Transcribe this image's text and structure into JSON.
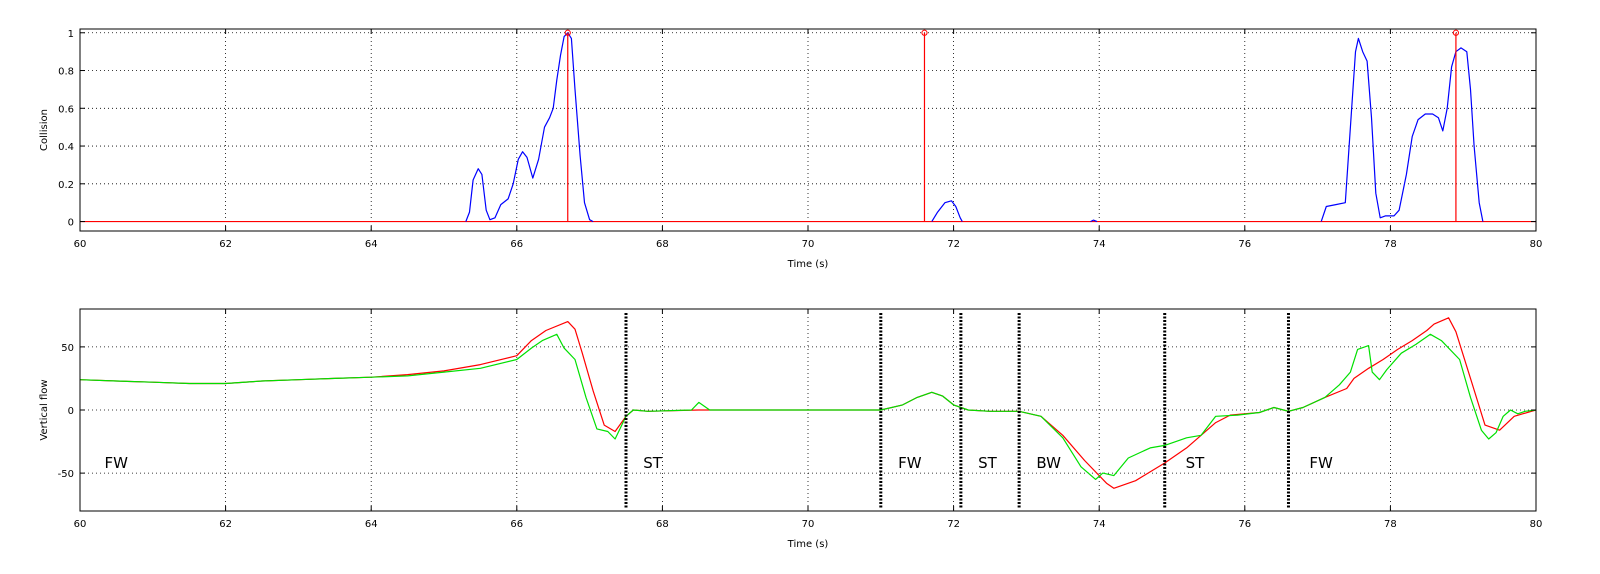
{
  "chart_data": [
    {
      "type": "line",
      "xlabel": "Time (s)",
      "ylabel": "Collision",
      "xlim": [
        60,
        80
      ],
      "ylim": [
        -0.05,
        1.02
      ],
      "xticks": [
        60,
        62,
        64,
        66,
        68,
        70,
        72,
        74,
        76,
        78,
        80
      ],
      "xtick_labels": [
        "60",
        "62",
        "64",
        "66",
        "68",
        "70",
        "72",
        "74",
        "76",
        "78",
        "80"
      ],
      "yticks": [
        0,
        0.2,
        0.4,
        0.6,
        0.8,
        1
      ],
      "ytick_labels": [
        "0",
        "0.2",
        "0.4",
        "0.6",
        "0.8",
        "1"
      ],
      "grid": true,
      "series": [
        {
          "color": "#0000ff",
          "points": [
            [
              65.3,
              0
            ],
            [
              65.35,
              0.05
            ],
            [
              65.4,
              0.22
            ],
            [
              65.47,
              0.28
            ],
            [
              65.52,
              0.25
            ],
            [
              65.58,
              0.06
            ],
            [
              65.63,
              0.01
            ],
            [
              65.7,
              0.02
            ],
            [
              65.78,
              0.09
            ],
            [
              65.88,
              0.12
            ],
            [
              65.95,
              0.2
            ],
            [
              66.02,
              0.33
            ],
            [
              66.08,
              0.37
            ],
            [
              66.14,
              0.34
            ],
            [
              66.22,
              0.23
            ],
            [
              66.3,
              0.33
            ],
            [
              66.38,
              0.5
            ],
            [
              66.45,
              0.55
            ],
            [
              66.5,
              0.6
            ],
            [
              66.55,
              0.75
            ],
            [
              66.6,
              0.88
            ],
            [
              66.65,
              0.98
            ],
            [
              66.7,
              1.0
            ],
            [
              66.75,
              0.97
            ],
            [
              66.8,
              0.7
            ],
            [
              66.87,
              0.35
            ],
            [
              66.93,
              0.1
            ],
            [
              67.0,
              0.01
            ],
            [
              67.05,
              0
            ]
          ]
        },
        {
          "color": "#0000ff",
          "points": [
            [
              71.7,
              0
            ],
            [
              71.78,
              0.05
            ],
            [
              71.88,
              0.1
            ],
            [
              71.97,
              0.11
            ],
            [
              72.03,
              0.08
            ],
            [
              72.09,
              0.02
            ],
            [
              72.12,
              0
            ]
          ]
        },
        {
          "color": "#0000ff",
          "points": [
            [
              73.88,
              0
            ],
            [
              73.92,
              0.008
            ],
            [
              73.97,
              0
            ]
          ]
        },
        {
          "color": "#0000ff",
          "points": [
            [
              77.05,
              0
            ],
            [
              77.12,
              0.08
            ],
            [
              77.25,
              0.09
            ],
            [
              77.38,
              0.1
            ],
            [
              77.45,
              0.5
            ],
            [
              77.52,
              0.9
            ],
            [
              77.56,
              0.97
            ],
            [
              77.62,
              0.9
            ],
            [
              77.68,
              0.85
            ],
            [
              77.74,
              0.55
            ],
            [
              77.8,
              0.15
            ],
            [
              77.86,
              0.02
            ],
            [
              77.93,
              0.03
            ],
            [
              78.05,
              0.03
            ],
            [
              78.12,
              0.06
            ],
            [
              78.22,
              0.25
            ],
            [
              78.3,
              0.45
            ],
            [
              78.38,
              0.54
            ],
            [
              78.48,
              0.57
            ],
            [
              78.58,
              0.57
            ],
            [
              78.66,
              0.55
            ],
            [
              78.72,
              0.48
            ],
            [
              78.78,
              0.6
            ],
            [
              78.84,
              0.82
            ],
            [
              78.9,
              0.9
            ],
            [
              78.97,
              0.92
            ],
            [
              79.05,
              0.9
            ],
            [
              79.1,
              0.7
            ],
            [
              79.15,
              0.4
            ],
            [
              79.22,
              0.1
            ],
            [
              79.27,
              0
            ]
          ]
        }
      ],
      "baseline": {
        "y": 0,
        "color": "#ff0000"
      },
      "stems": {
        "color": "#ff0000",
        "x": [
          66.7,
          71.6,
          78.9
        ],
        "y": [
          1,
          1,
          1
        ]
      }
    },
    {
      "type": "line",
      "xlabel": "Time (s)",
      "ylabel": "Vertical flow",
      "xlim": [
        60,
        80
      ],
      "ylim": [
        -80,
        80
      ],
      "xticks": [
        60,
        62,
        64,
        66,
        68,
        70,
        72,
        74,
        76,
        78,
        80
      ],
      "xtick_labels": [
        "60",
        "62",
        "64",
        "66",
        "68",
        "70",
        "72",
        "74",
        "76",
        "78",
        "80"
      ],
      "yticks": [
        -50,
        0,
        50
      ],
      "ytick_labels": [
        "-50",
        "0",
        "50"
      ],
      "grid": true,
      "series": [
        {
          "color": "#ff0000",
          "points": [
            [
              60,
              24
            ],
            [
              60.5,
              23
            ],
            [
              61,
              22
            ],
            [
              61.5,
              21
            ],
            [
              62,
              21
            ],
            [
              62.5,
              23
            ],
            [
              63,
              24
            ],
            [
              63.5,
              25
            ],
            [
              64,
              26
            ],
            [
              64.5,
              28
            ],
            [
              65,
              31
            ],
            [
              65.5,
              36
            ],
            [
              66,
              43
            ],
            [
              66.2,
              55
            ],
            [
              66.4,
              63
            ],
            [
              66.7,
              70
            ],
            [
              66.8,
              64
            ],
            [
              66.9,
              45
            ],
            [
              67.05,
              15
            ],
            [
              67.2,
              -12
            ],
            [
              67.35,
              -17
            ],
            [
              67.5,
              -5
            ],
            [
              67.6,
              0
            ],
            [
              67.8,
              -1
            ],
            [
              68.5,
              0
            ],
            [
              69,
              0
            ],
            [
              70,
              0
            ],
            [
              71,
              0
            ],
            [
              71.3,
              4
            ],
            [
              71.5,
              10
            ],
            [
              71.7,
              14
            ],
            [
              71.85,
              11
            ],
            [
              72,
              4
            ],
            [
              72.2,
              0
            ],
            [
              72.5,
              -1
            ],
            [
              72.9,
              -1
            ],
            [
              73.2,
              -5
            ],
            [
              73.5,
              -20
            ],
            [
              73.8,
              -40
            ],
            [
              74.1,
              -58
            ],
            [
              74.2,
              -62
            ],
            [
              74.5,
              -56
            ],
            [
              74.9,
              -42
            ],
            [
              75.2,
              -30
            ],
            [
              75.4,
              -20
            ],
            [
              75.6,
              -10
            ],
            [
              75.8,
              -4
            ],
            [
              76.2,
              -2
            ],
            [
              76.4,
              2
            ],
            [
              76.6,
              -1
            ],
            [
              76.8,
              2
            ],
            [
              77.1,
              10
            ],
            [
              77.4,
              17
            ],
            [
              77.5,
              25
            ],
            [
              77.7,
              33
            ],
            [
              77.9,
              40
            ],
            [
              78.1,
              48
            ],
            [
              78.3,
              55
            ],
            [
              78.5,
              63
            ],
            [
              78.6,
              68
            ],
            [
              78.8,
              73
            ],
            [
              78.9,
              62
            ],
            [
              79.1,
              25
            ],
            [
              79.3,
              -12
            ],
            [
              79.5,
              -16
            ],
            [
              79.7,
              -5
            ],
            [
              80,
              0
            ]
          ]
        },
        {
          "color": "#00e000",
          "points": [
            [
              60,
              24
            ],
            [
              60.5,
              23
            ],
            [
              61,
              22
            ],
            [
              61.5,
              21
            ],
            [
              62,
              21
            ],
            [
              62.5,
              23
            ],
            [
              63,
              24
            ],
            [
              63.5,
              25
            ],
            [
              64,
              26
            ],
            [
              64.5,
              27
            ],
            [
              65,
              30
            ],
            [
              65.5,
              33
            ],
            [
              66,
              40
            ],
            [
              66.2,
              49
            ],
            [
              66.35,
              55
            ],
            [
              66.55,
              60
            ],
            [
              66.65,
              49
            ],
            [
              66.8,
              40
            ],
            [
              66.95,
              10
            ],
            [
              67.1,
              -15
            ],
            [
              67.25,
              -17
            ],
            [
              67.35,
              -23
            ],
            [
              67.5,
              -5
            ],
            [
              67.6,
              0
            ],
            [
              67.8,
              -1
            ],
            [
              68.4,
              0
            ],
            [
              68.5,
              6
            ],
            [
              68.65,
              0
            ],
            [
              69,
              0
            ],
            [
              70,
              0
            ],
            [
              71,
              0
            ],
            [
              71.3,
              4
            ],
            [
              71.5,
              10
            ],
            [
              71.7,
              14
            ],
            [
              71.85,
              11
            ],
            [
              72,
              4
            ],
            [
              72.2,
              0
            ],
            [
              72.5,
              -1
            ],
            [
              72.9,
              -1
            ],
            [
              73.2,
              -5
            ],
            [
              73.5,
              -22
            ],
            [
              73.75,
              -45
            ],
            [
              73.95,
              -55
            ],
            [
              74.05,
              -50
            ],
            [
              74.2,
              -52
            ],
            [
              74.4,
              -38
            ],
            [
              74.7,
              -30
            ],
            [
              74.9,
              -28
            ],
            [
              75.2,
              -22
            ],
            [
              75.4,
              -20
            ],
            [
              75.6,
              -5
            ],
            [
              75.9,
              -4
            ],
            [
              76.2,
              -2
            ],
            [
              76.4,
              2
            ],
            [
              76.6,
              -1
            ],
            [
              76.8,
              2
            ],
            [
              77.1,
              10
            ],
            [
              77.3,
              20
            ],
            [
              77.45,
              30
            ],
            [
              77.55,
              48
            ],
            [
              77.7,
              51
            ],
            [
              77.75,
              30
            ],
            [
              77.85,
              24
            ],
            [
              77.95,
              32
            ],
            [
              78.15,
              45
            ],
            [
              78.35,
              52
            ],
            [
              78.55,
              60
            ],
            [
              78.7,
              55
            ],
            [
              78.95,
              40
            ],
            [
              79.1,
              10
            ],
            [
              79.25,
              -16
            ],
            [
              79.35,
              -23
            ],
            [
              79.45,
              -18
            ],
            [
              79.55,
              -5
            ],
            [
              79.65,
              0
            ],
            [
              79.75,
              -3
            ],
            [
              79.85,
              -1
            ],
            [
              80,
              0
            ]
          ]
        }
      ],
      "boundaries": {
        "color": "#000000",
        "x": [
          67.5,
          71.0,
          72.1,
          72.9,
          74.9,
          76.6
        ]
      },
      "segment_labels": [
        {
          "text": "FW",
          "x": 60.2
        },
        {
          "text": "ST",
          "x": 67.6
        },
        {
          "text": "FW",
          "x": 71.1
        },
        {
          "text": "ST",
          "x": 72.2
        },
        {
          "text": "BW",
          "x": 73.0
        },
        {
          "text": "ST",
          "x": 75.05
        },
        {
          "text": "FW",
          "x": 76.75
        }
      ]
    }
  ]
}
